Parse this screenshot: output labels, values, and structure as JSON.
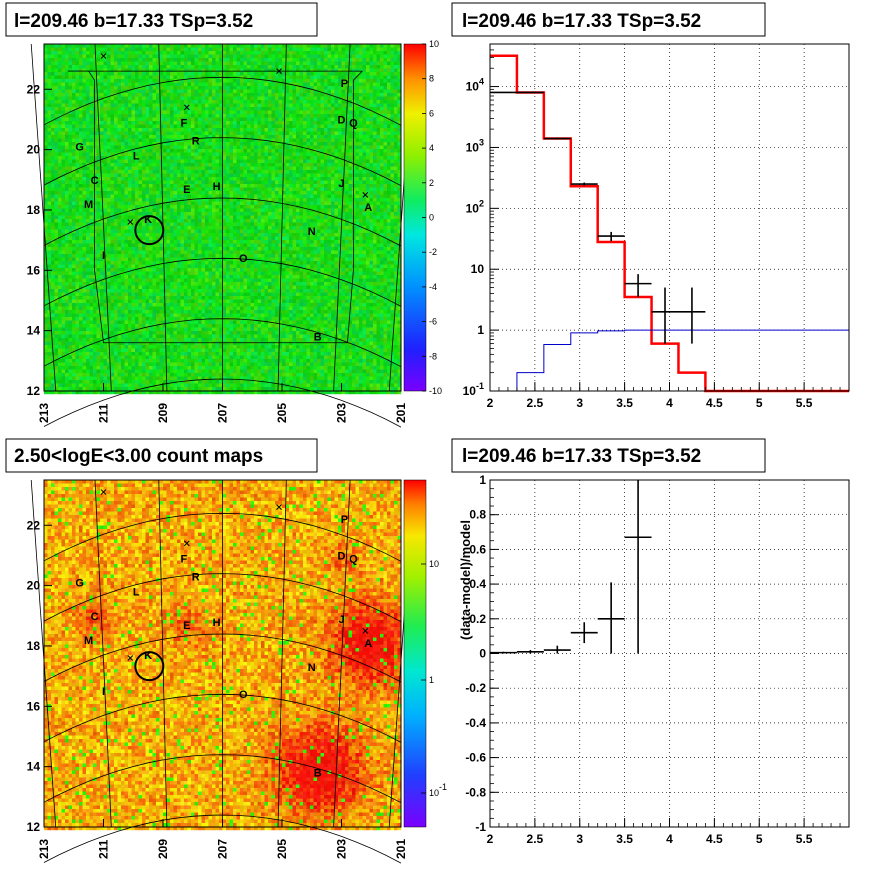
{
  "chart_data": [
    {
      "type": "heatmap",
      "title": "l=209.46 b=17.33 TSp=3.52",
      "xticks": [
        "213",
        "211",
        "209",
        "207",
        "205",
        "203",
        "201"
      ],
      "yticks": [
        "12",
        "14",
        "16",
        "18",
        "20",
        "22"
      ],
      "xlim": [
        213,
        201
      ],
      "ylim": [
        12,
        23.5
      ],
      "zlim": [
        -10,
        10
      ],
      "zticks": [
        "10",
        "8",
        "6",
        "4",
        "2",
        "0",
        "-2",
        "-4",
        "-6",
        "-8",
        "-10"
      ],
      "z_scale": "linear",
      "labels": [
        {
          "text": "P",
          "l": 202.9,
          "b": 22.2
        },
        {
          "text": "F",
          "l": 208.3,
          "b": 20.9
        },
        {
          "text": "D",
          "l": 203.0,
          "b": 21.0
        },
        {
          "text": "Q",
          "l": 202.6,
          "b": 20.9
        },
        {
          "text": "R",
          "l": 207.9,
          "b": 20.3
        },
        {
          "text": "G",
          "l": 211.8,
          "b": 20.1
        },
        {
          "text": "L",
          "l": 209.9,
          "b": 19.8
        },
        {
          "text": "C",
          "l": 211.3,
          "b": 19.0
        },
        {
          "text": "J",
          "l": 203.0,
          "b": 18.9
        },
        {
          "text": "E",
          "l": 208.2,
          "b": 18.7
        },
        {
          "text": "H",
          "l": 207.2,
          "b": 18.8
        },
        {
          "text": "A",
          "l": 202.1,
          "b": 18.1
        },
        {
          "text": "M",
          "l": 211.5,
          "b": 18.2
        },
        {
          "text": "K",
          "l": 209.5,
          "b": 17.7
        },
        {
          "text": "N",
          "l": 204.0,
          "b": 17.3
        },
        {
          "text": "I",
          "l": 211.0,
          "b": 16.5
        },
        {
          "text": "O",
          "l": 206.3,
          "b": 16.4
        },
        {
          "text": "B",
          "l": 203.8,
          "b": 13.8
        }
      ],
      "crosses": [
        {
          "l": 211.0,
          "b": 23.1
        },
        {
          "l": 205.1,
          "b": 22.6
        },
        {
          "l": 208.2,
          "b": 21.4
        },
        {
          "l": 202.2,
          "b": 18.5
        },
        {
          "l": 210.1,
          "b": 17.6
        }
      ],
      "circle": {
        "l": 209.46,
        "b": 17.33
      }
    },
    {
      "type": "line",
      "title": "l=209.46 b=17.33 TSp=3.52",
      "xlim": [
        2,
        6
      ],
      "ylim": [
        0.1,
        50000
      ],
      "y_scale": "log",
      "xticks": [
        "2",
        "2.5",
        "3",
        "3.5",
        "4",
        "4.5",
        "5",
        "5.5"
      ],
      "yticks": [
        {
          "base": "10",
          "exp": "4"
        },
        {
          "base": "10",
          "exp": "3"
        },
        {
          "base": "10",
          "exp": "2"
        },
        {
          "base": "10",
          "exp": ""
        },
        {
          "base": "1",
          "exp": ""
        },
        {
          "base": "10",
          "exp": "-1"
        }
      ],
      "grid": true,
      "bin_edges": [
        2.0,
        2.3,
        2.6,
        2.9,
        3.2,
        3.5,
        3.8,
        4.1,
        4.4,
        4.7,
        5.0,
        5.3,
        5.6,
        6.0
      ],
      "series": [
        {
          "color": "#ff0000",
          "values": [
            32000,
            8000,
            1400,
            230,
            28,
            3.5,
            0.6,
            0.2,
            0.1,
            0.1,
            0.1,
            0.1,
            0.1
          ]
        },
        {
          "color": "#0000cc",
          "values": [
            null,
            0.2,
            0.58,
            0.9,
            0.97,
            1.0,
            1.0,
            1.0,
            1.0,
            1.0,
            1.0,
            1.0,
            1.0
          ]
        }
      ],
      "points": [
        {
          "x": 2.15,
          "y": 8000,
          "xerr": 0.15,
          "ylo": 8000,
          "yhi": 8000
        },
        {
          "x": 2.45,
          "y": 8000,
          "xerr": 0.15,
          "ylo": 7800,
          "yhi": 8200
        },
        {
          "x": 2.75,
          "y": 1400,
          "xerr": 0.15,
          "ylo": 1350,
          "yhi": 1450
        },
        {
          "x": 3.05,
          "y": 250,
          "xerr": 0.15,
          "ylo": 235,
          "yhi": 265
        },
        {
          "x": 3.35,
          "y": 35,
          "xerr": 0.15,
          "ylo": 29,
          "yhi": 41
        },
        {
          "x": 3.65,
          "y": 5.8,
          "xerr": 0.15,
          "ylo": 3.5,
          "yhi": 8.3
        },
        {
          "x": 3.95,
          "y": 2.0,
          "xerr": 0.15,
          "ylo": 0.6,
          "yhi": 5.0
        },
        {
          "x": 4.25,
          "y": 2.0,
          "xerr": 0.15,
          "ylo": 0.6,
          "yhi": 5.0
        }
      ]
    },
    {
      "type": "heatmap",
      "title": "2.50<logE<3.00 count maps",
      "xticks": [
        "213",
        "211",
        "209",
        "207",
        "205",
        "203",
        "201"
      ],
      "yticks": [
        "12",
        "14",
        "16",
        "18",
        "20",
        "22"
      ],
      "xlim": [
        213,
        201
      ],
      "ylim": [
        12,
        23.5
      ],
      "z_scale": "log",
      "zticks": [
        {
          "base": "10",
          "exp": ""
        },
        {
          "base": "1",
          "exp": ""
        },
        {
          "base": "10",
          "exp": "-1"
        }
      ],
      "labels": [
        {
          "text": "P",
          "l": 202.9,
          "b": 22.2
        },
        {
          "text": "F",
          "l": 208.3,
          "b": 20.9
        },
        {
          "text": "D",
          "l": 203.0,
          "b": 21.0
        },
        {
          "text": "Q",
          "l": 202.6,
          "b": 20.9
        },
        {
          "text": "R",
          "l": 207.9,
          "b": 20.3
        },
        {
          "text": "G",
          "l": 211.8,
          "b": 20.1
        },
        {
          "text": "L",
          "l": 209.9,
          "b": 19.8
        },
        {
          "text": "C",
          "l": 211.3,
          "b": 19.0
        },
        {
          "text": "J",
          "l": 203.0,
          "b": 18.9
        },
        {
          "text": "E",
          "l": 208.2,
          "b": 18.7
        },
        {
          "text": "H",
          "l": 207.2,
          "b": 18.8
        },
        {
          "text": "A",
          "l": 202.1,
          "b": 18.1
        },
        {
          "text": "M",
          "l": 211.5,
          "b": 18.2
        },
        {
          "text": "K",
          "l": 209.5,
          "b": 17.7
        },
        {
          "text": "N",
          "l": 204.0,
          "b": 17.3
        },
        {
          "text": "I",
          "l": 211.0,
          "b": 16.5
        },
        {
          "text": "O",
          "l": 206.3,
          "b": 16.4
        },
        {
          "text": "B",
          "l": 203.8,
          "b": 13.8
        }
      ],
      "crosses": [
        {
          "l": 211.0,
          "b": 23.1
        },
        {
          "l": 205.1,
          "b": 22.6
        },
        {
          "l": 208.2,
          "b": 21.4
        },
        {
          "l": 202.2,
          "b": 18.5
        },
        {
          "l": 210.1,
          "b": 17.6
        }
      ],
      "circle": {
        "l": 209.46,
        "b": 17.33
      }
    },
    {
      "type": "scatter",
      "title": "l=209.46 b=17.33 TSp=3.52",
      "ylabel": "(data-model)/model",
      "xlim": [
        2,
        6
      ],
      "ylim": [
        -1,
        1
      ],
      "xticks": [
        "2",
        "2.5",
        "3",
        "3.5",
        "4",
        "4.5",
        "5",
        "5.5"
      ],
      "yticks": [
        "1",
        "0.8",
        "0.6",
        "0.4",
        "0.2",
        "0",
        "-0.2",
        "-0.4",
        "-0.6",
        "-0.8",
        "-1"
      ],
      "grid": true,
      "points": [
        {
          "x": 2.15,
          "y": 0.005,
          "xerr": 0.15,
          "ylo": 0.0,
          "yhi": 0.01
        },
        {
          "x": 2.45,
          "y": 0.01,
          "xerr": 0.15,
          "ylo": 0.0,
          "yhi": 0.02
        },
        {
          "x": 2.75,
          "y": 0.02,
          "xerr": 0.15,
          "ylo": 0.0,
          "yhi": 0.045
        },
        {
          "x": 3.05,
          "y": 0.12,
          "xerr": 0.15,
          "ylo": 0.06,
          "yhi": 0.18
        },
        {
          "x": 3.35,
          "y": 0.2,
          "xerr": 0.15,
          "ylo": 0.0,
          "yhi": 0.41
        },
        {
          "x": 3.65,
          "y": 0.67,
          "xerr": 0.15,
          "ylo": 0.0,
          "yhi": 1.0
        }
      ]
    }
  ]
}
